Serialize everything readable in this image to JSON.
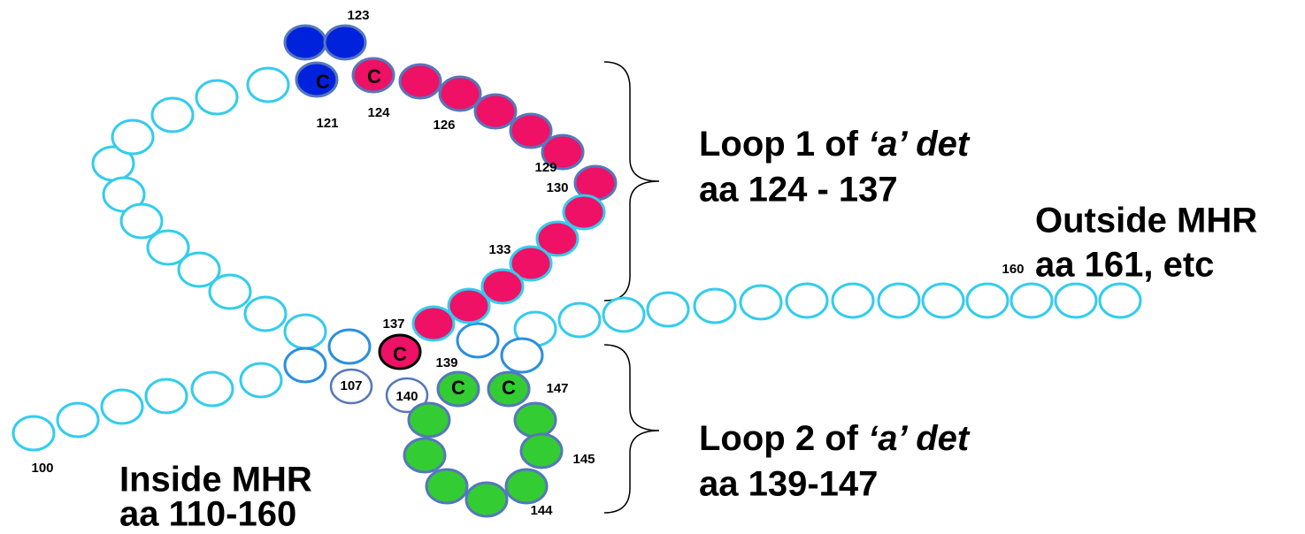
{
  "residue_labels": [
    "123",
    "121",
    "124",
    "126",
    "129",
    "130",
    "133",
    "137",
    "139",
    "147",
    "145",
    "144",
    "100",
    "160",
    "107",
    "140"
  ],
  "cysteines": [
    "C",
    "C",
    "C",
    "C",
    "C"
  ],
  "loop1": {
    "title_prefix": "Loop 1 of",
    "title_italic": "‘a’ det",
    "range": "aa 124 - 137"
  },
  "outside": {
    "title": "Outside MHR",
    "range": "aa 161, etc"
  },
  "loop2": {
    "title_prefix": "Loop 2 of",
    "title_italic": "‘a’ det",
    "range": "aa 139-147"
  },
  "inside": {
    "title": "Inside MHR",
    "range": "aa 110-160"
  }
}
